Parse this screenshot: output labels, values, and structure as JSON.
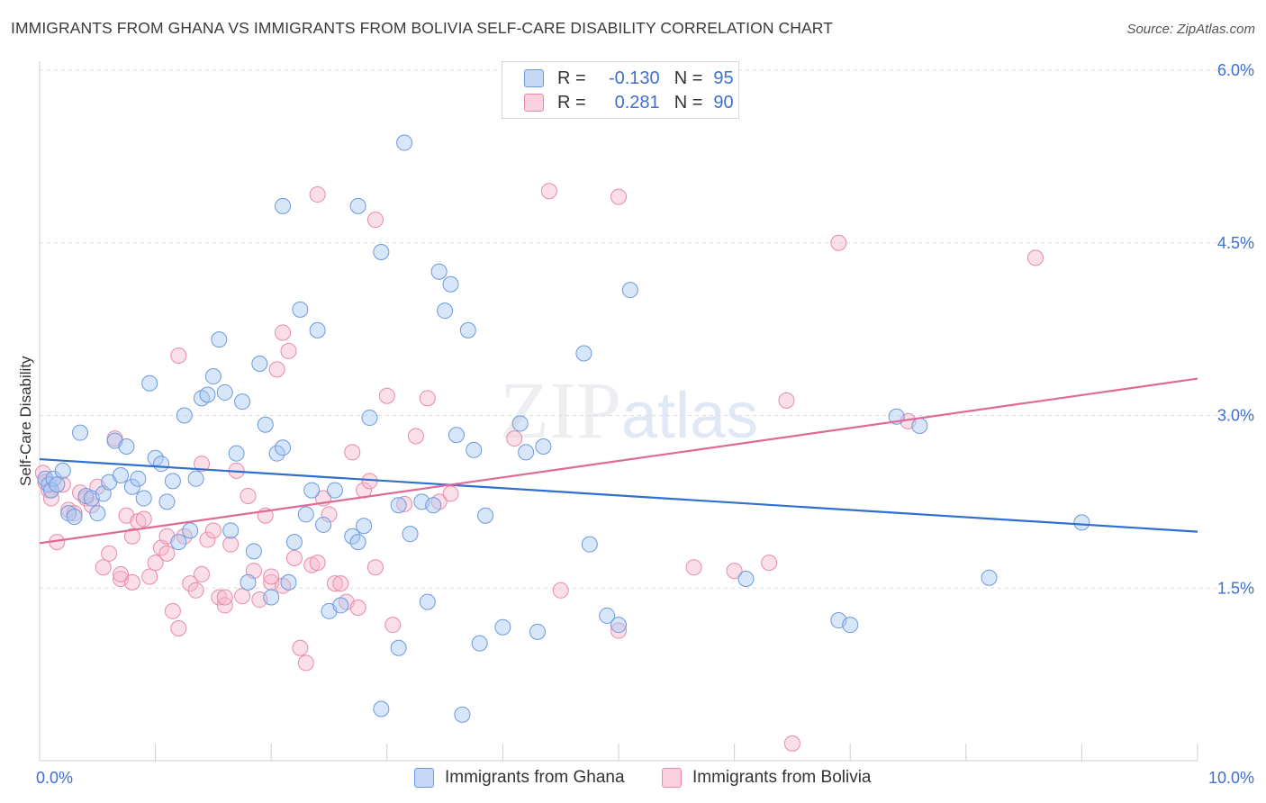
{
  "header": {
    "title": "IMMIGRANTS FROM GHANA VS IMMIGRANTS FROM BOLIVIA SELF-CARE DISABILITY CORRELATION CHART",
    "source": "Source: ZipAtlas.com"
  },
  "watermark": {
    "zip": "ZIP",
    "atlas": "atlas"
  },
  "legend": {
    "rows": [
      {
        "r_label": "R =",
        "r_value": "-0.130",
        "n_label": "N =",
        "n_value": "95",
        "color": "#a9c7f3"
      },
      {
        "r_label": "R =",
        "r_value": "0.281",
        "n_label": "N =",
        "n_value": "90",
        "color": "#f6b8cc"
      }
    ]
  },
  "bottom_legend": {
    "series1": "Immigrants from Ghana",
    "series2": "Immigrants from Bolivia"
  },
  "colors": {
    "ghana_fill": "#a9c7f3",
    "ghana_stroke": "#6c99dd",
    "ghana_line": "#2f6fd0",
    "bolivia_fill": "#f6b8cc",
    "bolivia_stroke": "#e88aaa",
    "bolivia_line": "#e06a97",
    "tick_text": "#3f6fcf"
  },
  "chart_data": {
    "type": "scatter",
    "title": "IMMIGRANTS FROM GHANA VS IMMIGRANTS FROM BOLIVIA SELF-CARE DISABILITY CORRELATION CHART",
    "xlabel": "",
    "ylabel": "Self-Care Disability",
    "xlim": [
      0,
      10
    ],
    "ylim": [
      0,
      6.0
    ],
    "x_tick_labels": [
      "0.0%",
      "10.0%"
    ],
    "y_ticks": [
      1.5,
      3.0,
      4.5,
      6.0
    ],
    "y_tick_labels": [
      "1.5%",
      "3.0%",
      "4.5%",
      "6.0%"
    ],
    "grid": true,
    "legend_position": "top-center",
    "series": [
      {
        "name": "Immigrants from Ghana",
        "trend": {
          "x": [
            0,
            10
          ],
          "y": [
            2.62,
            1.99
          ]
        },
        "points": [
          [
            0.05,
            2.45
          ],
          [
            0.08,
            2.4
          ],
          [
            0.1,
            2.35
          ],
          [
            0.12,
            2.45
          ],
          [
            0.15,
            2.4
          ],
          [
            0.2,
            2.52
          ],
          [
            0.25,
            2.15
          ],
          [
            0.3,
            2.12
          ],
          [
            0.35,
            2.85
          ],
          [
            0.4,
            2.3
          ],
          [
            0.45,
            2.28
          ],
          [
            0.5,
            2.15
          ],
          [
            0.55,
            2.32
          ],
          [
            0.6,
            2.42
          ],
          [
            0.65,
            2.78
          ],
          [
            0.7,
            2.48
          ],
          [
            0.75,
            2.73
          ],
          [
            0.8,
            2.38
          ],
          [
            0.85,
            2.45
          ],
          [
            0.9,
            2.28
          ],
          [
            0.95,
            3.28
          ],
          [
            1.0,
            2.63
          ],
          [
            1.05,
            2.58
          ],
          [
            1.1,
            2.25
          ],
          [
            1.15,
            2.43
          ],
          [
            1.2,
            1.9
          ],
          [
            1.25,
            3.0
          ],
          [
            1.3,
            2.0
          ],
          [
            1.35,
            2.45
          ],
          [
            1.4,
            3.15
          ],
          [
            1.45,
            3.18
          ],
          [
            1.5,
            3.34
          ],
          [
            1.55,
            3.66
          ],
          [
            1.6,
            3.2
          ],
          [
            1.65,
            2.0
          ],
          [
            1.7,
            2.67
          ],
          [
            1.75,
            3.12
          ],
          [
            1.8,
            1.55
          ],
          [
            1.85,
            1.82
          ],
          [
            1.9,
            3.45
          ],
          [
            1.95,
            2.92
          ],
          [
            2.0,
            1.42
          ],
          [
            2.05,
            2.67
          ],
          [
            2.1,
            2.72
          ],
          [
            2.15,
            1.55
          ],
          [
            2.2,
            1.9
          ],
          [
            2.25,
            3.92
          ],
          [
            2.3,
            2.14
          ],
          [
            2.35,
            2.35
          ],
          [
            2.4,
            3.74
          ],
          [
            2.45,
            2.05
          ],
          [
            2.5,
            1.3
          ],
          [
            2.55,
            2.35
          ],
          [
            2.6,
            1.35
          ],
          [
            2.7,
            1.95
          ],
          [
            2.75,
            1.9
          ],
          [
            2.8,
            2.04
          ],
          [
            2.85,
            2.98
          ],
          [
            2.95,
            0.45
          ],
          [
            3.1,
            2.22
          ],
          [
            3.2,
            1.97
          ],
          [
            3.3,
            2.25
          ],
          [
            3.35,
            1.38
          ],
          [
            3.4,
            2.22
          ],
          [
            3.45,
            4.25
          ],
          [
            3.5,
            3.91
          ],
          [
            3.55,
            4.14
          ],
          [
            3.6,
            2.83
          ],
          [
            3.65,
            0.4
          ],
          [
            3.7,
            3.74
          ],
          [
            3.75,
            2.7
          ],
          [
            3.8,
            1.02
          ],
          [
            3.85,
            2.13
          ],
          [
            4.0,
            1.16
          ],
          [
            4.15,
            2.93
          ],
          [
            4.2,
            2.68
          ],
          [
            4.3,
            1.12
          ],
          [
            4.35,
            2.73
          ],
          [
            4.7,
            3.54
          ],
          [
            4.75,
            1.88
          ],
          [
            4.9,
            1.26
          ],
          [
            5.0,
            1.18
          ],
          [
            5.1,
            4.09
          ],
          [
            6.1,
            1.58
          ],
          [
            6.9,
            1.22
          ],
          [
            7.0,
            1.18
          ],
          [
            7.4,
            2.99
          ],
          [
            7.6,
            2.91
          ],
          [
            8.2,
            1.59
          ],
          [
            9.0,
            2.07
          ],
          [
            2.1,
            4.82
          ],
          [
            2.75,
            4.82
          ],
          [
            2.95,
            4.42
          ],
          [
            3.15,
            5.37
          ],
          [
            3.1,
            0.98
          ]
        ]
      },
      {
        "name": "Immigrants from Bolivia",
        "trend": {
          "x": [
            0,
            10
          ],
          "y": [
            1.89,
            3.32
          ]
        },
        "points": [
          [
            0.03,
            2.5
          ],
          [
            0.05,
            2.42
          ],
          [
            0.08,
            2.35
          ],
          [
            0.1,
            2.28
          ],
          [
            0.15,
            1.9
          ],
          [
            0.2,
            2.4
          ],
          [
            0.25,
            2.18
          ],
          [
            0.3,
            2.15
          ],
          [
            0.35,
            2.33
          ],
          [
            0.4,
            2.28
          ],
          [
            0.45,
            2.22
          ],
          [
            0.5,
            2.38
          ],
          [
            0.55,
            1.68
          ],
          [
            0.6,
            1.8
          ],
          [
            0.65,
            2.8
          ],
          [
            0.7,
            1.58
          ],
          [
            0.75,
            2.13
          ],
          [
            0.8,
            1.95
          ],
          [
            0.85,
            2.08
          ],
          [
            0.9,
            2.1
          ],
          [
            0.95,
            1.6
          ],
          [
            1.0,
            1.72
          ],
          [
            1.05,
            1.85
          ],
          [
            1.1,
            1.8
          ],
          [
            1.15,
            1.3
          ],
          [
            1.2,
            1.15
          ],
          [
            1.25,
            1.95
          ],
          [
            1.3,
            1.54
          ],
          [
            1.35,
            1.48
          ],
          [
            1.4,
            1.62
          ],
          [
            1.45,
            1.92
          ],
          [
            1.5,
            2.0
          ],
          [
            1.55,
            1.42
          ],
          [
            1.6,
            1.35
          ],
          [
            1.65,
            1.88
          ],
          [
            1.7,
            2.52
          ],
          [
            1.75,
            1.43
          ],
          [
            1.8,
            2.3
          ],
          [
            1.85,
            1.65
          ],
          [
            1.9,
            1.4
          ],
          [
            1.95,
            2.13
          ],
          [
            2.0,
            1.55
          ],
          [
            2.05,
            3.4
          ],
          [
            2.1,
            1.52
          ],
          [
            2.15,
            3.56
          ],
          [
            2.2,
            1.76
          ],
          [
            2.25,
            0.98
          ],
          [
            2.3,
            0.85
          ],
          [
            2.35,
            1.7
          ],
          [
            2.4,
            1.72
          ],
          [
            2.45,
            2.28
          ],
          [
            2.5,
            2.14
          ],
          [
            2.55,
            1.54
          ],
          [
            2.6,
            1.54
          ],
          [
            2.65,
            1.38
          ],
          [
            2.7,
            2.68
          ],
          [
            2.75,
            1.33
          ],
          [
            2.8,
            2.35
          ],
          [
            2.85,
            2.43
          ],
          [
            2.9,
            1.68
          ],
          [
            3.0,
            3.17
          ],
          [
            3.05,
            1.18
          ],
          [
            3.15,
            2.23
          ],
          [
            3.25,
            2.82
          ],
          [
            3.35,
            3.15
          ],
          [
            3.45,
            2.25
          ],
          [
            3.55,
            2.32
          ],
          [
            4.1,
            2.8
          ],
          [
            4.4,
            4.95
          ],
          [
            4.5,
            1.48
          ],
          [
            5.0,
            1.13
          ],
          [
            5.0,
            4.9
          ],
          [
            5.65,
            1.68
          ],
          [
            6.0,
            1.65
          ],
          [
            6.3,
            1.72
          ],
          [
            6.45,
            3.13
          ],
          [
            6.5,
            0.15
          ],
          [
            6.9,
            4.5
          ],
          [
            7.5,
            2.95
          ],
          [
            8.6,
            4.37
          ],
          [
            1.2,
            3.52
          ],
          [
            2.1,
            3.72
          ],
          [
            2.4,
            4.92
          ],
          [
            2.9,
            4.7
          ],
          [
            1.4,
            2.58
          ],
          [
            0.8,
            1.55
          ],
          [
            1.1,
            1.95
          ],
          [
            2.0,
            1.6
          ],
          [
            1.6,
            1.42
          ],
          [
            0.7,
            1.62
          ]
        ]
      }
    ]
  }
}
